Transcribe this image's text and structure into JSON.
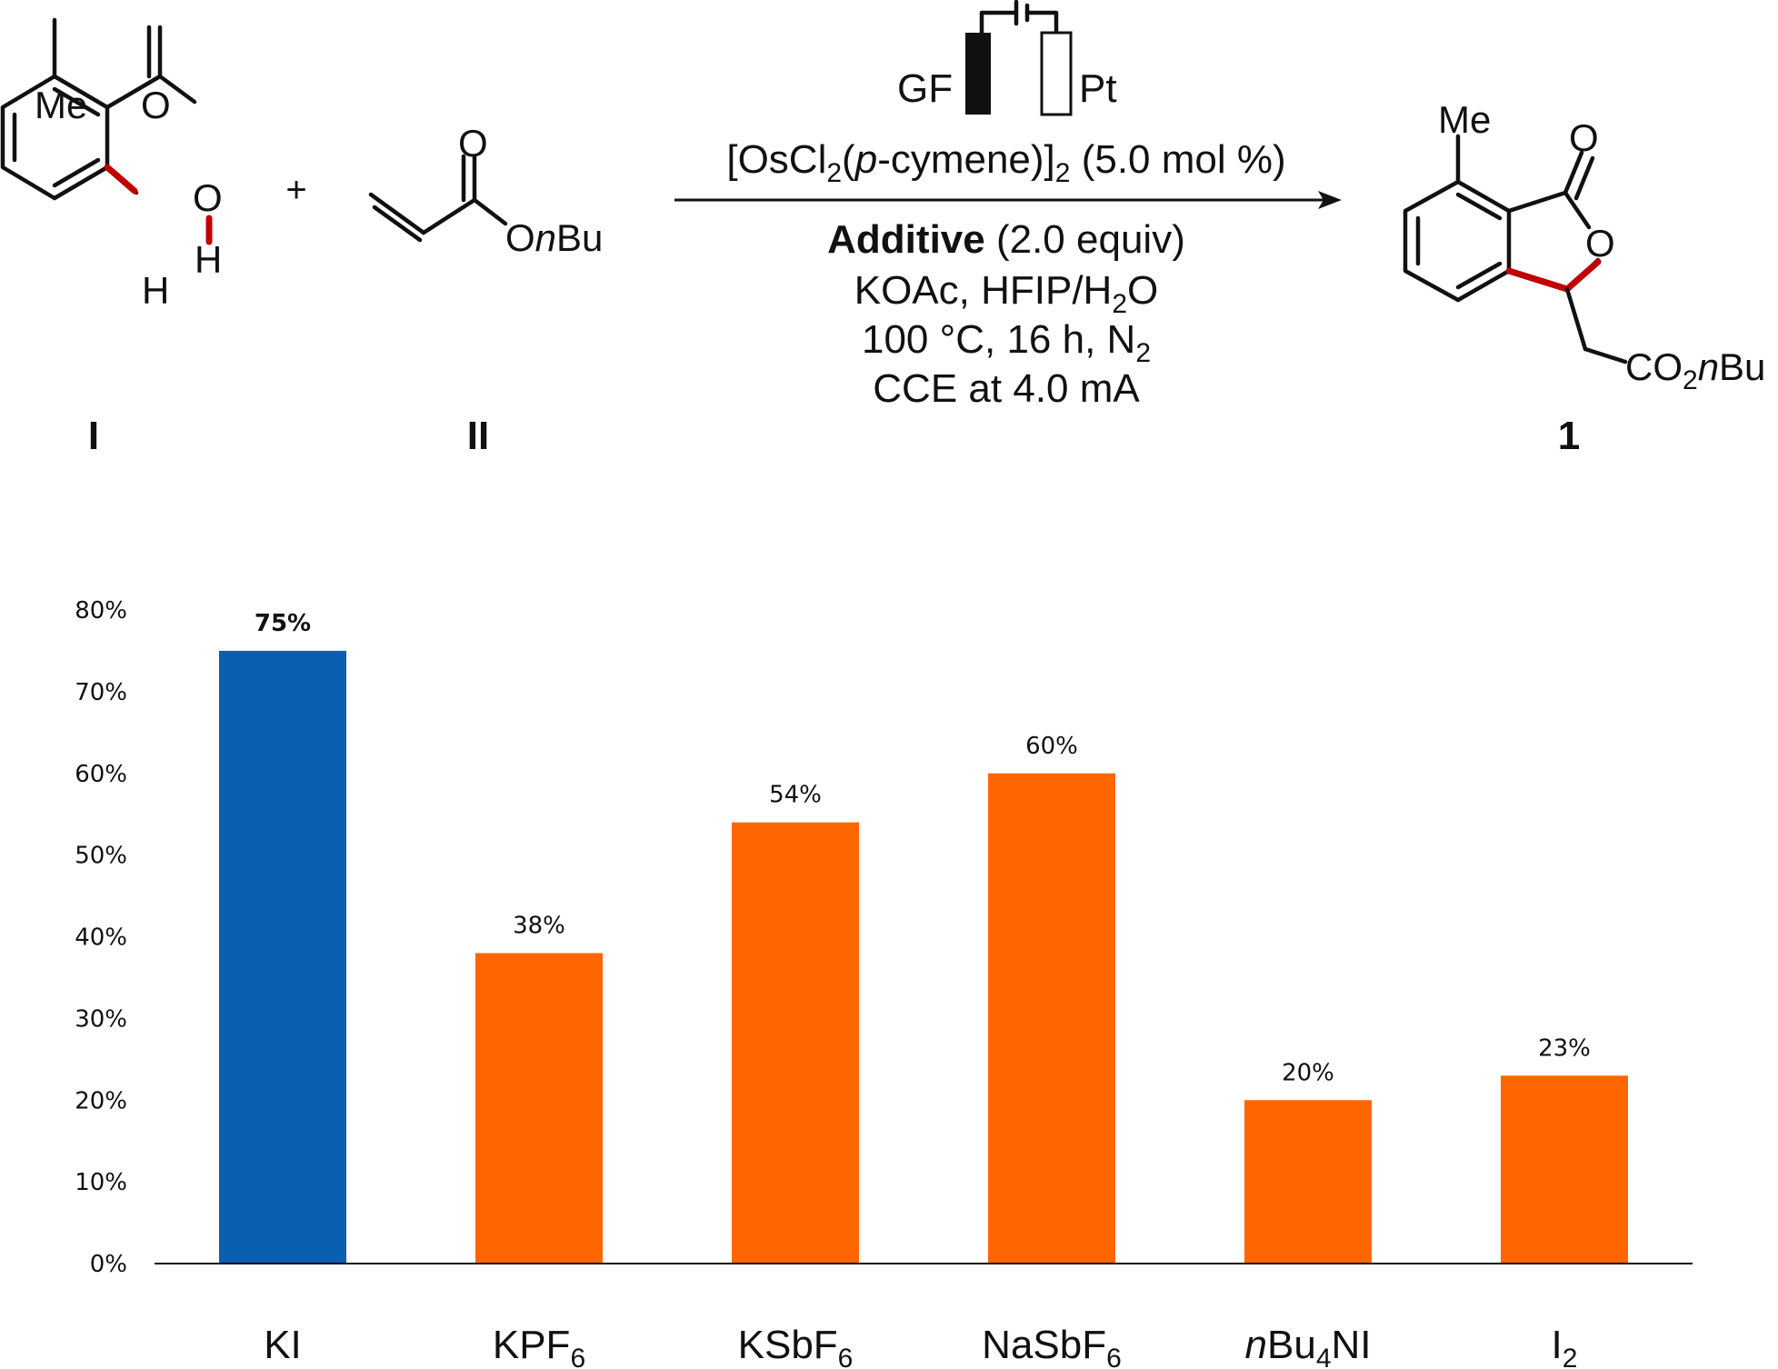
{
  "scheme": {
    "reactant_I": {
      "me": "Me",
      "o_carbonyl": "O",
      "o_hydroxyl": "O",
      "h_hydroxyl": "H",
      "h_ring": "H",
      "label": "I"
    },
    "plus": "+",
    "reactant_II": {
      "o_carbonyl": "O",
      "o_ester": "O",
      "n_prefix": "n",
      "bu": "Bu",
      "label": "II"
    },
    "electrodes": {
      "anode": "GF",
      "cathode": "Pt"
    },
    "conditions": {
      "catalyst_pre": "[OsCl",
      "catalyst_sub1": "2",
      "catalyst_mid": "(",
      "catalyst_p": "p",
      "catalyst_rest": "-cymene)]",
      "catalyst_sub2": "2",
      "catalyst_loading": " (5.0 mol %)",
      "additive_bold": "Additive",
      "additive_equiv": " (2.0 equiv)",
      "line3_pre": "KOAc, HFIP/H",
      "line3_sub": "2",
      "line3_post": "O",
      "line4_pre": "100 °C, 16 h, N",
      "line4_sub": "2",
      "line5": "CCE at 4.0 mA"
    },
    "product": {
      "me": "Me",
      "o_carbonyl": "O",
      "o_ring": "O",
      "co": "CO",
      "co_sub": "2",
      "n_prefix": "n",
      "bu": "Bu",
      "label": "1"
    }
  },
  "chart_data": {
    "type": "bar",
    "categories": [
      "KI",
      "KPF6",
      "KSbF6",
      "NaSbF6",
      "nBu4NI",
      "I2"
    ],
    "category_labels": [
      {
        "pre": "",
        "italic": "",
        "base": "KI",
        "sub": "",
        "post": ""
      },
      {
        "pre": "",
        "italic": "",
        "base": "KPF",
        "sub": "6",
        "post": ""
      },
      {
        "pre": "",
        "italic": "",
        "base": "KSbF",
        "sub": "6",
        "post": ""
      },
      {
        "pre": "",
        "italic": "",
        "base": "NaSbF",
        "sub": "6",
        "post": ""
      },
      {
        "pre": "",
        "italic": "n",
        "base": "Bu",
        "sub": "4",
        "post": "NI"
      },
      {
        "pre": "",
        "italic": "",
        "base": "I",
        "sub": "2",
        "post": ""
      }
    ],
    "values": [
      75,
      38,
      54,
      60,
      20,
      23
    ],
    "data_labels": [
      "75%",
      "38%",
      "54%",
      "60%",
      "20%",
      "23%"
    ],
    "highlight_index": 0,
    "colors": {
      "highlight": "#0b5fb0",
      "default": "#ff6600",
      "axis": "#111111"
    },
    "yticks": [
      "0%",
      "10%",
      "20%",
      "30%",
      "40%",
      "50%",
      "60%",
      "70%",
      "80%"
    ],
    "ylim": [
      0,
      80
    ],
    "grid": false
  }
}
